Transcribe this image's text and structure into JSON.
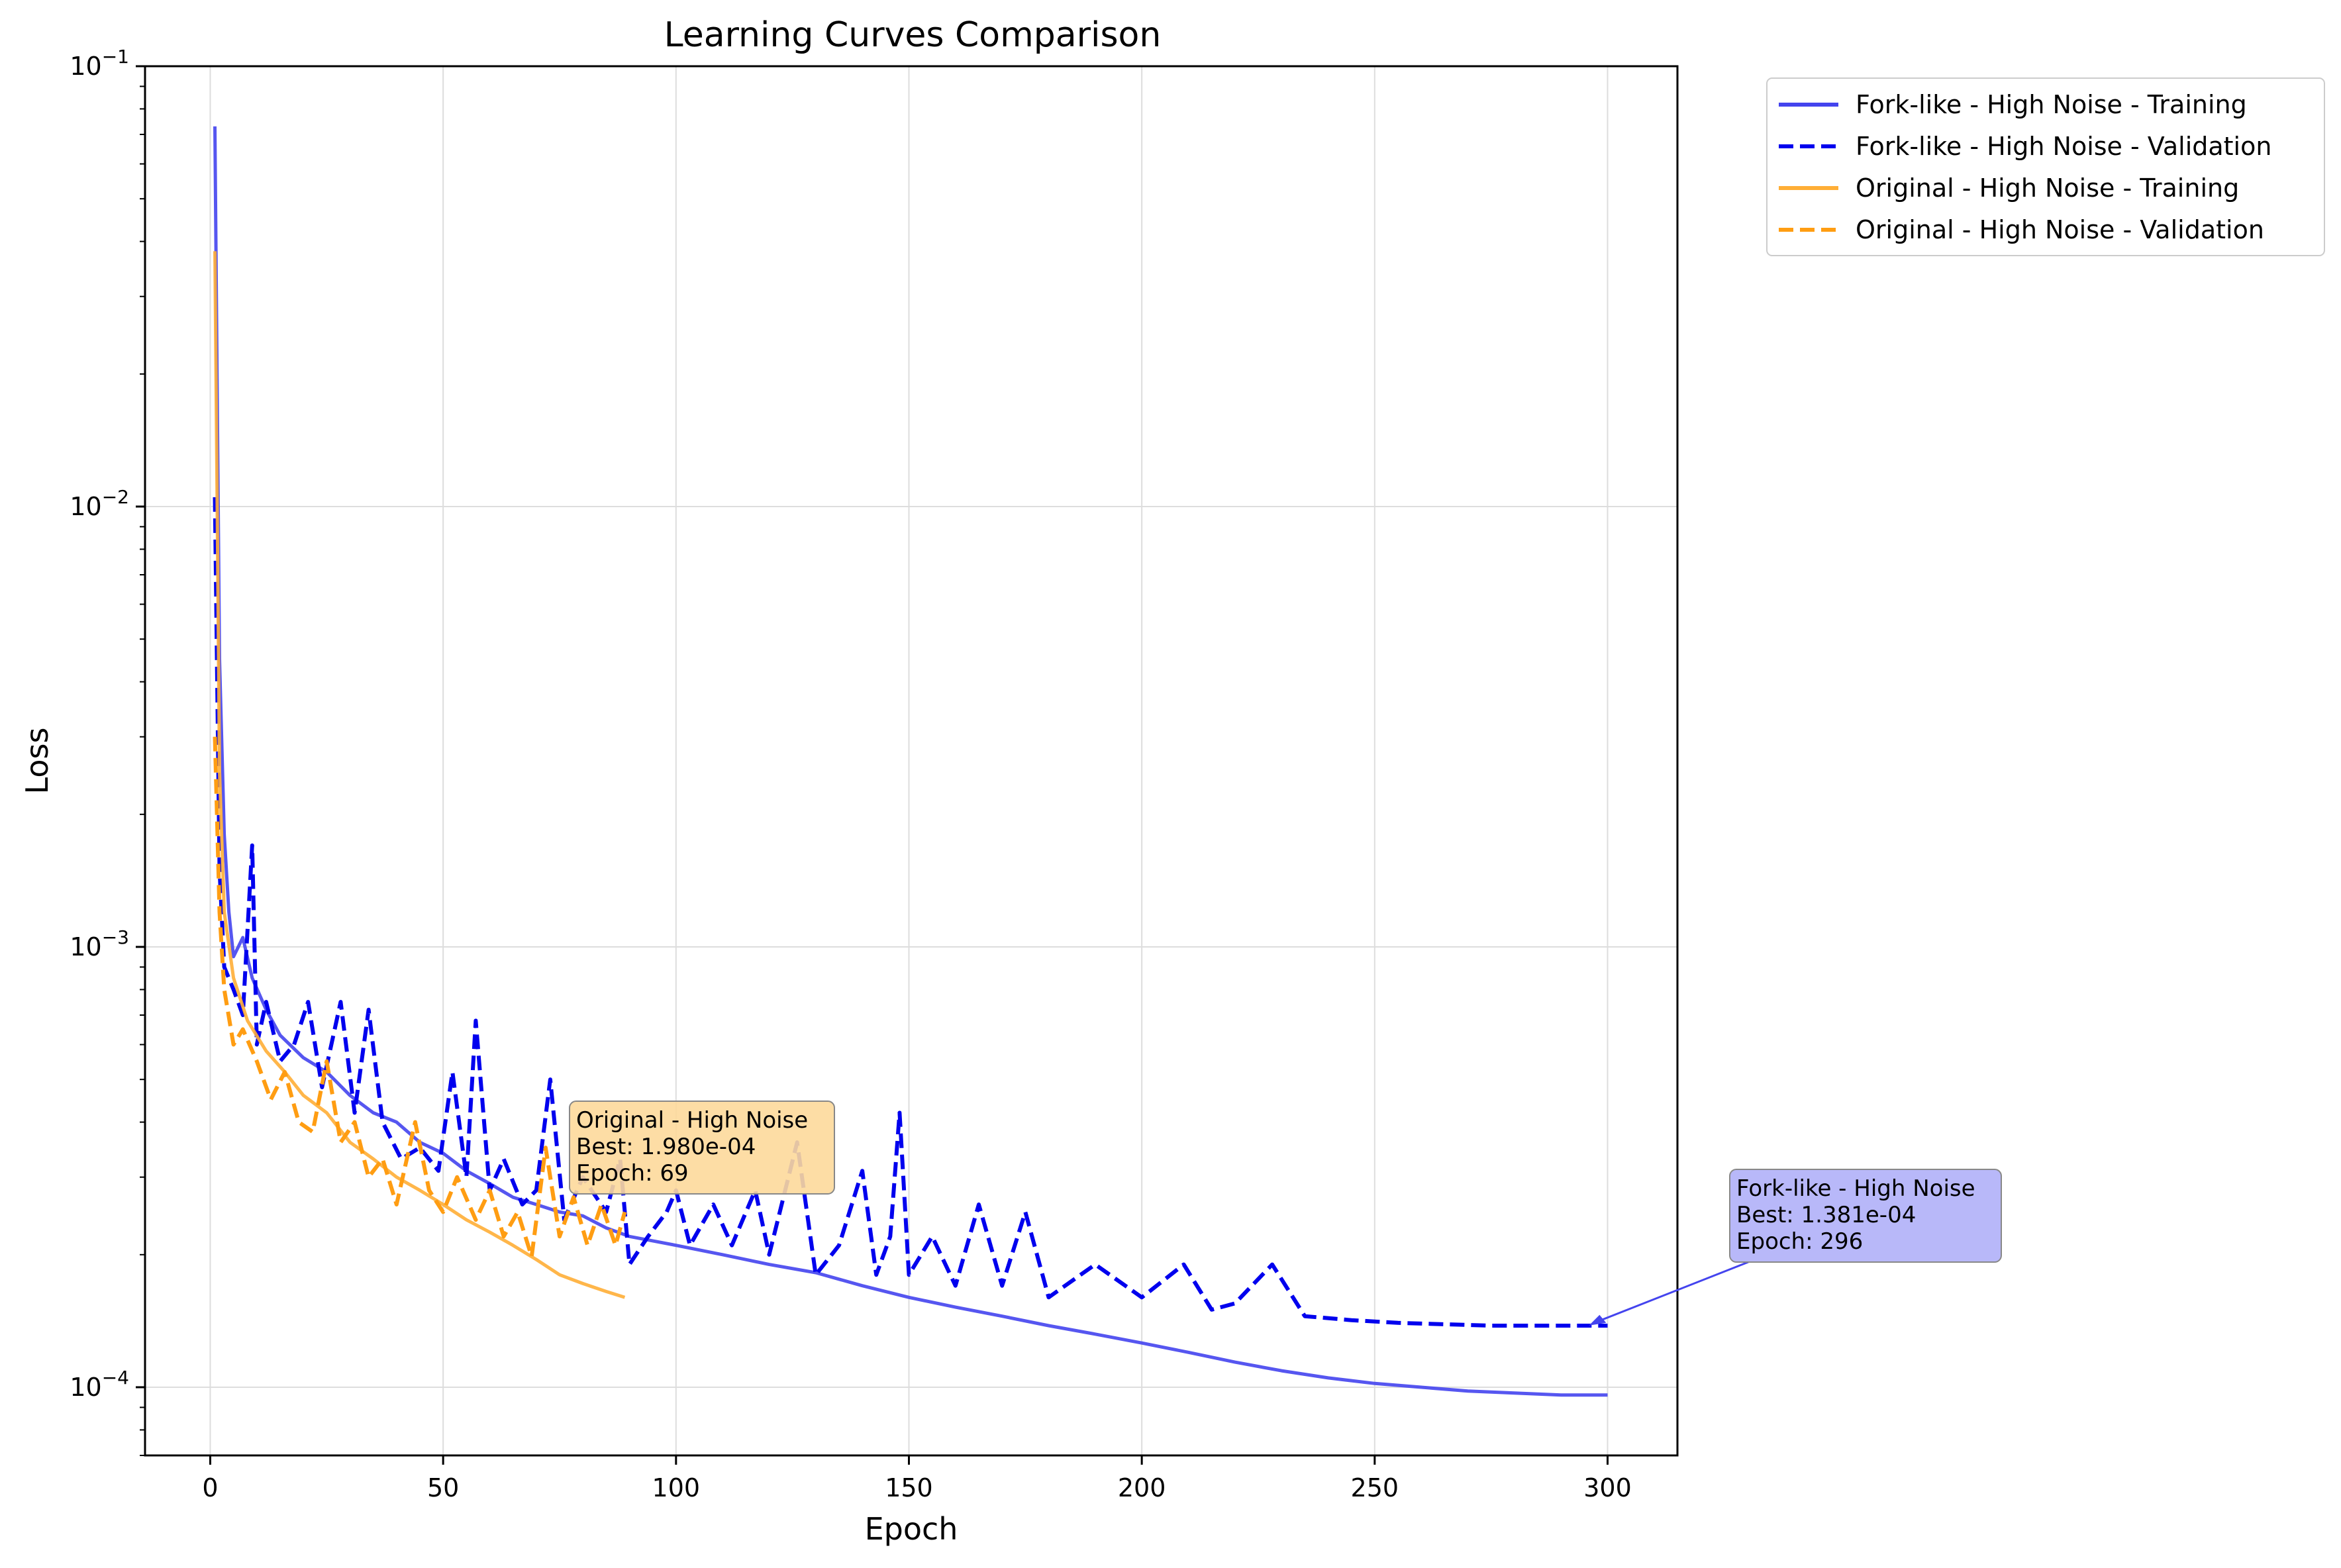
{
  "chart_data": {
    "type": "line",
    "title": "Learning Curves Comparison",
    "xlabel": "Epoch",
    "ylabel": "Loss",
    "xlim": [
      -14,
      315
    ],
    "ylim": [
      7e-05,
      0.1
    ],
    "yscale": "log",
    "grid": true,
    "legend_position": "outside-top-right",
    "x_ticks": [
      {
        "value": 0,
        "label": "0"
      },
      {
        "value": 50,
        "label": "50"
      },
      {
        "value": 100,
        "label": "100"
      },
      {
        "value": 150,
        "label": "150"
      },
      {
        "value": 200,
        "label": "200"
      },
      {
        "value": 250,
        "label": "250"
      },
      {
        "value": 300,
        "label": "300"
      }
    ],
    "y_ticks": [
      {
        "value": 0.0001,
        "base": "10",
        "exp": "−4"
      },
      {
        "value": 0.001,
        "base": "10",
        "exp": "−3"
      },
      {
        "value": 0.01,
        "base": "10",
        "exp": "−2"
      },
      {
        "value": 0.1,
        "base": "10",
        "exp": "−1"
      }
    ],
    "series": [
      {
        "name": "Fork-like - High Noise - Training",
        "color": "#4444ee",
        "style": "solid",
        "points": [
          [
            1,
            0.073
          ],
          [
            2,
            0.0045
          ],
          [
            3,
            0.0018
          ],
          [
            4,
            0.0012
          ],
          [
            5,
            0.00095
          ],
          [
            7,
            0.00105
          ],
          [
            9,
            0.00085
          ],
          [
            12,
            0.00072
          ],
          [
            15,
            0.00063
          ],
          [
            20,
            0.00056
          ],
          [
            25,
            0.00052
          ],
          [
            30,
            0.00046
          ],
          [
            35,
            0.00042
          ],
          [
            40,
            0.0004
          ],
          [
            45,
            0.00036
          ],
          [
            50,
            0.00034
          ],
          [
            55,
            0.00031
          ],
          [
            60,
            0.00029
          ],
          [
            65,
            0.00027
          ],
          [
            70,
            0.00026
          ],
          [
            75,
            0.00025
          ],
          [
            80,
            0.000245
          ],
          [
            85,
            0.00023
          ],
          [
            90,
            0.00022
          ],
          [
            95,
            0.000215
          ],
          [
            100,
            0.00021
          ],
          [
            110,
            0.0002
          ],
          [
            120,
            0.00019
          ],
          [
            130,
            0.000182
          ],
          [
            140,
            0.00017
          ],
          [
            150,
            0.00016
          ],
          [
            160,
            0.000152
          ],
          [
            170,
            0.000145
          ],
          [
            180,
            0.000138
          ],
          [
            190,
            0.000132
          ],
          [
            200,
            0.000126
          ],
          [
            210,
            0.00012
          ],
          [
            220,
            0.000114
          ],
          [
            230,
            0.000109
          ],
          [
            240,
            0.000105
          ],
          [
            250,
            0.000102
          ],
          [
            260,
            0.0001
          ],
          [
            270,
            9.8e-05
          ],
          [
            280,
            9.7e-05
          ],
          [
            290,
            9.6e-05
          ],
          [
            300,
            9.6e-05
          ]
        ]
      },
      {
        "name": "Fork-like - High Noise - Validation",
        "color": "#0000ee",
        "style": "dashed",
        "points": [
          [
            1,
            0.0105
          ],
          [
            2,
            0.0015
          ],
          [
            3,
            0.0009
          ],
          [
            5,
            0.0008
          ],
          [
            7,
            0.0007
          ],
          [
            9,
            0.0017
          ],
          [
            10,
            0.0006
          ],
          [
            12,
            0.00075
          ],
          [
            15,
            0.00055
          ],
          [
            18,
            0.0006
          ],
          [
            21,
            0.00075
          ],
          [
            24,
            0.00048
          ],
          [
            28,
            0.00075
          ],
          [
            31,
            0.00042
          ],
          [
            34,
            0.00072
          ],
          [
            37,
            0.0004
          ],
          [
            41,
            0.00033
          ],
          [
            45,
            0.00035
          ],
          [
            49,
            0.00031
          ],
          [
            52,
            0.00052
          ],
          [
            55,
            0.0003
          ],
          [
            57,
            0.00068
          ],
          [
            60,
            0.00028
          ],
          [
            63,
            0.00033
          ],
          [
            67,
            0.00026
          ],
          [
            70,
            0.00028
          ],
          [
            73,
            0.0005
          ],
          [
            76,
            0.00024
          ],
          [
            80,
            0.0003
          ],
          [
            85,
            0.00025
          ],
          [
            88,
            0.00033
          ],
          [
            90,
            0.00019
          ],
          [
            94,
            0.00022
          ],
          [
            98,
            0.00025
          ],
          [
            100,
            0.00028
          ],
          [
            103,
            0.00021
          ],
          [
            108,
            0.00026
          ],
          [
            112,
            0.00021
          ],
          [
            117,
            0.00028
          ],
          [
            120,
            0.0002
          ],
          [
            126,
            0.00036
          ],
          [
            130,
            0.00018
          ],
          [
            135,
            0.00021
          ],
          [
            140,
            0.00031
          ],
          [
            143,
            0.00018
          ],
          [
            146,
            0.00022
          ],
          [
            148,
            0.00042
          ],
          [
            150,
            0.00018
          ],
          [
            155,
            0.00022
          ],
          [
            160,
            0.00017
          ],
          [
            165,
            0.00026
          ],
          [
            170,
            0.00017
          ],
          [
            175,
            0.00025
          ],
          [
            180,
            0.00016
          ],
          [
            190,
            0.00019
          ],
          [
            200,
            0.00016
          ],
          [
            209,
            0.00019
          ],
          [
            215,
            0.00015
          ],
          [
            220,
            0.000155
          ],
          [
            228,
            0.00019
          ],
          [
            235,
            0.000145
          ],
          [
            245,
            0.000142
          ],
          [
            255,
            0.00014
          ],
          [
            265,
            0.000139
          ],
          [
            275,
            0.000138
          ],
          [
            285,
            0.000138
          ],
          [
            296,
            0.000138
          ],
          [
            300,
            0.000138
          ]
        ]
      },
      {
        "name": "Original - High Noise - Training",
        "color": "#ffae36",
        "style": "solid",
        "points": [
          [
            1,
            0.038
          ],
          [
            2,
            0.0025
          ],
          [
            3,
            0.0012
          ],
          [
            5,
            0.00085
          ],
          [
            8,
            0.00068
          ],
          [
            12,
            0.00058
          ],
          [
            16,
            0.00052
          ],
          [
            20,
            0.00046
          ],
          [
            25,
            0.00042
          ],
          [
            30,
            0.00036
          ],
          [
            35,
            0.00033
          ],
          [
            40,
            0.0003
          ],
          [
            45,
            0.00028
          ],
          [
            50,
            0.00026
          ],
          [
            55,
            0.00024
          ],
          [
            60,
            0.000225
          ],
          [
            65,
            0.00021
          ],
          [
            70,
            0.000195
          ],
          [
            75,
            0.00018
          ],
          [
            80,
            0.000172
          ],
          [
            85,
            0.000165
          ],
          [
            89,
            0.00016
          ]
        ]
      },
      {
        "name": "Original - High Noise - Validation",
        "color": "#ff9d12",
        "style": "dashed",
        "points": [
          [
            1,
            0.003
          ],
          [
            2,
            0.0012
          ],
          [
            3,
            0.0008
          ],
          [
            5,
            0.0006
          ],
          [
            7,
            0.00065
          ],
          [
            10,
            0.00055
          ],
          [
            13,
            0.00045
          ],
          [
            16,
            0.00052
          ],
          [
            19,
            0.0004
          ],
          [
            22,
            0.00038
          ],
          [
            25,
            0.00055
          ],
          [
            28,
            0.00036
          ],
          [
            31,
            0.0004
          ],
          [
            34,
            0.0003
          ],
          [
            37,
            0.00033
          ],
          [
            40,
            0.00026
          ],
          [
            44,
            0.0004
          ],
          [
            47,
            0.00028
          ],
          [
            50,
            0.00025
          ],
          [
            53,
            0.0003
          ],
          [
            57,
            0.00024
          ],
          [
            60,
            0.00028
          ],
          [
            63,
            0.00022
          ],
          [
            66,
            0.00025
          ],
          [
            69,
            0.000198
          ],
          [
            72,
            0.00035
          ],
          [
            75,
            0.00022
          ],
          [
            78,
            0.00027
          ],
          [
            81,
            0.00021
          ],
          [
            84,
            0.00026
          ],
          [
            87,
            0.00021
          ],
          [
            89,
            0.00025
          ]
        ]
      }
    ],
    "annotations": [
      {
        "series": "Original - High Noise",
        "best": "Best: 1.980e-04",
        "epoch": "Epoch: 69",
        "x": 69,
        "y": 0.000198,
        "bg": "#fdd99b"
      },
      {
        "series": "Fork-like - High Noise",
        "best": "Best: 1.381e-04",
        "epoch": "Epoch: 296",
        "x": 296,
        "y": 0.0001381,
        "bg": "#b0b0f8"
      }
    ]
  }
}
